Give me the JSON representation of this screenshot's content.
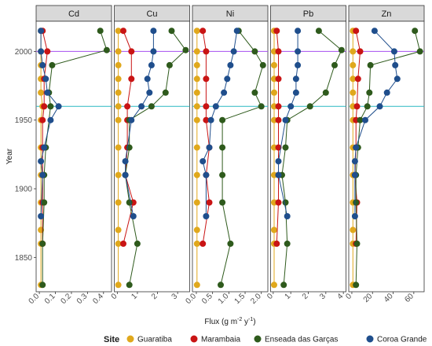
{
  "chart_data": {
    "type": "line",
    "ylabel": "Year",
    "xlabel_main": "Flux (g m",
    "xlabel_sup1": "-2",
    "xlabel_mid": " y",
    "xlabel_sup2": "-1",
    "xlabel_end": ")",
    "legend_title": "Site",
    "legend_position": "bottom",
    "ylim": [
      1825,
      2022
    ],
    "yticks": [
      1850,
      1900,
      1950,
      2000
    ],
    "hlines": [
      {
        "y": 2000,
        "color": "#a64ff0"
      },
      {
        "y": 1960,
        "color": "#2ab8c2"
      }
    ],
    "site_names": [
      "Guaratiba",
      "Marambaia",
      "Enseada das Garças",
      "Coroa Grande"
    ],
    "site_colors": [
      "#e0a81c",
      "#c91414",
      "#2e5a1c",
      "#1f4e8c"
    ],
    "panels": [
      {
        "name": "Cd",
        "xlim": [
          -0.02,
          0.45
        ],
        "xticks": [
          0.0,
          0.1,
          0.2,
          0.3,
          0.4
        ],
        "xtick_labels": [
          "0.0",
          "0.1",
          "0.2",
          "0.3",
          "0.4"
        ],
        "series": [
          {
            "years": [
              2015,
              2000,
              1990,
              1980,
              1970,
              1960,
              1950,
              1930,
              1910,
              1890,
              1870,
              1860,
              1830
            ],
            "values": [
              0.01,
              0.01,
              0.01,
              0.01,
              0.01,
              0.02,
              0.01,
              0.01,
              0.01,
              0.01,
              0.01,
              0.01,
              0.01
            ]
          },
          {
            "years": [
              2015,
              2000,
              1980,
              1960,
              1950,
              1930,
              1910,
              1890,
              1860
            ],
            "values": [
              0.02,
              0.05,
              0.03,
              0.03,
              0.02,
              0.02,
              0.02,
              0.02,
              0.02
            ]
          },
          {
            "years": [
              2015,
              2001,
              1990,
              1970,
              1960,
              1930,
              1910,
              1890,
              1860,
              1830
            ],
            "values": [
              0.38,
              0.42,
              0.08,
              0.06,
              0.07,
              0.04,
              0.03,
              0.03,
              0.02,
              0.02
            ]
          },
          {
            "years": [
              2015,
              2000,
              1990,
              1980,
              1970,
              1960,
              1950,
              1930,
              1920,
              1910,
              1880
            ],
            "values": [
              0.01,
              0.01,
              0.02,
              0.04,
              0.05,
              0.12,
              0.07,
              0.03,
              0.01,
              0.02,
              0.01
            ]
          }
        ]
      },
      {
        "name": "Cu",
        "xlim": [
          -0.15,
          3.6
        ],
        "xticks": [
          0,
          1,
          2,
          3
        ],
        "xtick_labels": [
          "0",
          "1",
          "2",
          "3"
        ],
        "series": [
          {
            "years": [
              2015,
              2000,
              1990,
              1980,
              1970,
              1960,
              1950,
              1930,
              1910,
              1890,
              1870,
              1860,
              1830
            ],
            "values": [
              0.05,
              0.05,
              0.05,
              0.05,
              0.05,
              0.05,
              0.05,
              0.05,
              0.05,
              0.05,
              0.05,
              0.05,
              0.05
            ]
          },
          {
            "years": [
              2015,
              2000,
              1980,
              1960,
              1950,
              1930,
              1910,
              1890,
              1860
            ],
            "values": [
              0.3,
              0.7,
              0.7,
              0.5,
              0.5,
              0.5,
              0.4,
              0.8,
              0.3
            ]
          },
          {
            "years": [
              2015,
              2001,
              1990,
              1970,
              1960,
              1950,
              1930,
              1910,
              1890,
              1860,
              1830
            ],
            "values": [
              2.7,
              3.4,
              2.6,
              2.4,
              1.7,
              0.6,
              0.6,
              0.4,
              0.6,
              1.0,
              0.6
            ]
          },
          {
            "years": [
              2015,
              2000,
              1990,
              1980,
              1970,
              1960,
              1950,
              1920,
              1910,
              1880
            ],
            "values": [
              1.8,
              1.8,
              1.7,
              1.5,
              1.6,
              1.2,
              0.7,
              0.4,
              0.4,
              0.8
            ]
          }
        ]
      },
      {
        "name": "Ni",
        "xlim": [
          -0.12,
          2.2
        ],
        "xticks": [
          0.0,
          0.5,
          1.0,
          1.5,
          2.0
        ],
        "xtick_labels": [
          "0.0",
          "0.5",
          "1.0",
          "1.5",
          "2.0"
        ],
        "series": [
          {
            "years": [
              2015,
              2000,
              1990,
              1980,
              1970,
              1960,
              1950,
              1930,
              1910,
              1890,
              1870,
              1860,
              1830
            ],
            "values": [
              0.02,
              0.02,
              0.02,
              0.02,
              0.02,
              0.02,
              0.02,
              0.02,
              0.02,
              0.02,
              0.02,
              0.02,
              0.02
            ]
          },
          {
            "years": [
              2015,
              2000,
              1980,
              1960,
              1950,
              1930,
              1910,
              1890,
              1860
            ],
            "values": [
              0.2,
              0.3,
              0.3,
              0.3,
              0.3,
              0.4,
              0.3,
              0.4,
              0.2
            ]
          },
          {
            "years": [
              2015,
              2000,
              1990,
              1970,
              1960,
              1950,
              1930,
              1910,
              1890,
              1860,
              1830
            ],
            "values": [
              1.3,
              1.8,
              2.05,
              1.8,
              2.0,
              0.8,
              0.8,
              0.8,
              0.8,
              1.05,
              0.75
            ]
          },
          {
            "years": [
              2015,
              2000,
              1990,
              1980,
              1970,
              1960,
              1950,
              1930,
              1920,
              1910,
              1880
            ],
            "values": [
              1.25,
              1.15,
              1.05,
              0.95,
              0.85,
              0.6,
              0.45,
              0.4,
              0.2,
              0.3,
              0.3
            ]
          }
        ]
      },
      {
        "name": "Pb",
        "xlim": [
          -0.15,
          4.15
        ],
        "xticks": [
          0,
          1,
          2,
          3,
          4
        ],
        "xtick_labels": [
          "0",
          "1",
          "2",
          "3",
          "4"
        ],
        "series": [
          {
            "years": [
              2015,
              2000,
              1990,
              1980,
              1970,
              1960,
              1950,
              1930,
              1910,
              1890,
              1870,
              1860,
              1830
            ],
            "values": [
              0.05,
              0.05,
              0.05,
              0.05,
              0.05,
              0.05,
              0.05,
              0.05,
              0.05,
              0.05,
              0.05,
              0.05,
              0.05
            ]
          },
          {
            "years": [
              2015,
              2000,
              1980,
              1960,
              1950,
              1930,
              1910,
              1890,
              1860
            ],
            "values": [
              0.2,
              0.3,
              0.3,
              0.3,
              0.3,
              0.3,
              0.3,
              0.3,
              0.2
            ]
          },
          {
            "years": [
              2015,
              2001,
              1990,
              1970,
              1960,
              1950,
              1930,
              1910,
              1890,
              1860,
              1830
            ],
            "values": [
              2.6,
              3.9,
              3.5,
              3.0,
              2.1,
              0.8,
              0.7,
              0.5,
              0.7,
              0.8,
              0.6
            ]
          },
          {
            "years": [
              2015,
              2000,
              1990,
              1980,
              1970,
              1960,
              1950,
              1920,
              1910,
              1880
            ],
            "values": [
              1.4,
              1.4,
              1.4,
              1.3,
              1.3,
              1.0,
              0.7,
              0.3,
              0.3,
              0.8
            ]
          }
        ]
      },
      {
        "name": "Zn",
        "xlim": [
          -3,
          70
        ],
        "xticks": [
          0,
          20,
          40,
          60
        ],
        "xtick_labels": [
          "0",
          "20",
          "40",
          "60"
        ],
        "series": [
          {
            "years": [
              2015,
              2000,
              1990,
              1980,
              1970,
              1960,
              1950,
              1930,
              1910,
              1890,
              1870,
              1860,
              1830
            ],
            "values": [
              1,
              1,
              1,
              1,
              1,
              1,
              1,
              1,
              1,
              1,
              1,
              1,
              1
            ]
          },
          {
            "years": [
              2015,
              2000,
              1980,
              1960,
              1950,
              1930,
              1910,
              1890,
              1860
            ],
            "values": [
              4,
              8,
              6,
              5,
              4,
              4,
              3,
              5,
              4
            ]
          },
          {
            "years": [
              2015,
              2000,
              1990,
              1970,
              1960,
              1950,
              1930,
              1910,
              1890,
              1860,
              1830
            ],
            "values": [
              61,
              66,
              18,
              17,
              15,
              8,
              6,
              4,
              4,
              5,
              4
            ]
          },
          {
            "years": [
              2015,
              2000,
              1990,
              1980,
              1970,
              1960,
              1950,
              1930,
              1920,
              1910,
              1880
            ],
            "values": [
              22,
              41,
              42,
              44,
              34,
              27,
              13,
              4,
              3,
              3,
              3
            ]
          }
        ]
      }
    ]
  }
}
